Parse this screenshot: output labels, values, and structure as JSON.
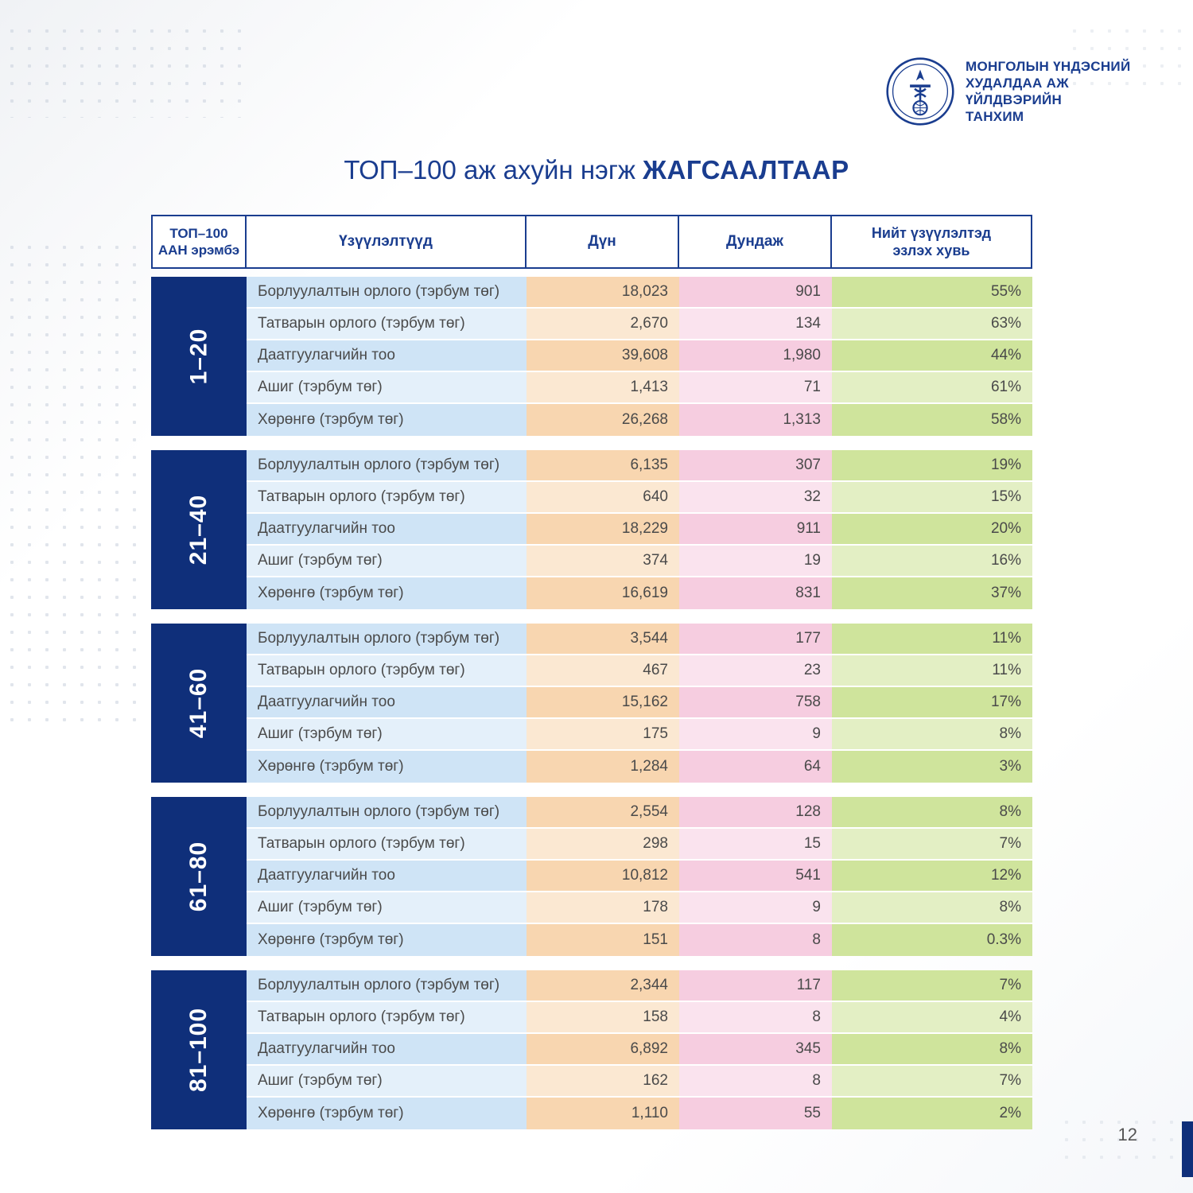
{
  "org": {
    "line1": "МОНГОЛЫН ҮНДЭСНИЙ",
    "line2": "ХУДАЛДАА АЖ ҮЙЛДВЭРИЙН",
    "line3": "ТАНХИМ"
  },
  "title": {
    "thin": "ТОП–100 аж ахуйн нэгж ",
    "bold": "ЖАГСААЛТААР"
  },
  "columns": {
    "rank": "ТОП–100\nААН эрэмбэ",
    "indicator": "Үзүүлэлтүүд",
    "value": "Дүн",
    "average": "Дундаж",
    "percent": "Нийт үзүүлэлтэд\nэзлэх хувь"
  },
  "colors": {
    "rank_bg": "#0f2f7a",
    "header_border": "#1a3d8f",
    "header_text": "#1a3d8f",
    "row_alt_a": {
      "ind": "#cfe4f6",
      "val": "#f8d6b0",
      "avg": "#f6cde0",
      "pct": "#cfe49c"
    },
    "row_alt_b": {
      "ind": "#e4f0fa",
      "val": "#fbe8d2",
      "avg": "#fae3ee",
      "pct": "#e3efc4"
    }
  },
  "indicators": [
    "Борлуулалтын орлого (тэрбум төг)",
    "Татварын орлого (тэрбум төг)",
    "Даатгуулагчийн тоо",
    "Ашиг (тэрбум төг)",
    "Хөрөнгө (тэрбум төг)"
  ],
  "groups": [
    {
      "label": "1–20",
      "rows": [
        {
          "val": "18,023",
          "avg": "901",
          "pct": "55%"
        },
        {
          "val": "2,670",
          "avg": "134",
          "pct": "63%"
        },
        {
          "val": "39,608",
          "avg": "1,980",
          "pct": "44%"
        },
        {
          "val": "1,413",
          "avg": "71",
          "pct": "61%"
        },
        {
          "val": "26,268",
          "avg": "1,313",
          "pct": "58%"
        }
      ]
    },
    {
      "label": "21–40",
      "rows": [
        {
          "val": "6,135",
          "avg": "307",
          "pct": "19%"
        },
        {
          "val": "640",
          "avg": "32",
          "pct": "15%"
        },
        {
          "val": "18,229",
          "avg": "911",
          "pct": "20%"
        },
        {
          "val": "374",
          "avg": "19",
          "pct": "16%"
        },
        {
          "val": "16,619",
          "avg": "831",
          "pct": "37%"
        }
      ]
    },
    {
      "label": "41–60",
      "rows": [
        {
          "val": "3,544",
          "avg": "177",
          "pct": "11%"
        },
        {
          "val": "467",
          "avg": "23",
          "pct": "11%"
        },
        {
          "val": "15,162",
          "avg": "758",
          "pct": "17%"
        },
        {
          "val": "175",
          "avg": "9",
          "pct": "8%"
        },
        {
          "val": "1,284",
          "avg": "64",
          "pct": "3%"
        }
      ]
    },
    {
      "label": "61–80",
      "rows": [
        {
          "val": "2,554",
          "avg": "128",
          "pct": "8%"
        },
        {
          "val": "298",
          "avg": "15",
          "pct": "7%"
        },
        {
          "val": "10,812",
          "avg": "541",
          "pct": "12%"
        },
        {
          "val": "178",
          "avg": "9",
          "pct": "8%"
        },
        {
          "val": "151",
          "avg": "8",
          "pct": "0.3%"
        }
      ]
    },
    {
      "label": "81–100",
      "rows": [
        {
          "val": "2,344",
          "avg": "117",
          "pct": "7%"
        },
        {
          "val": "158",
          "avg": "8",
          "pct": "4%"
        },
        {
          "val": "6,892",
          "avg": "345",
          "pct": "8%"
        },
        {
          "val": "162",
          "avg": "8",
          "pct": "7%"
        },
        {
          "val": "1,110",
          "avg": "55",
          "pct": "2%"
        }
      ]
    }
  ],
  "page_number": "12"
}
